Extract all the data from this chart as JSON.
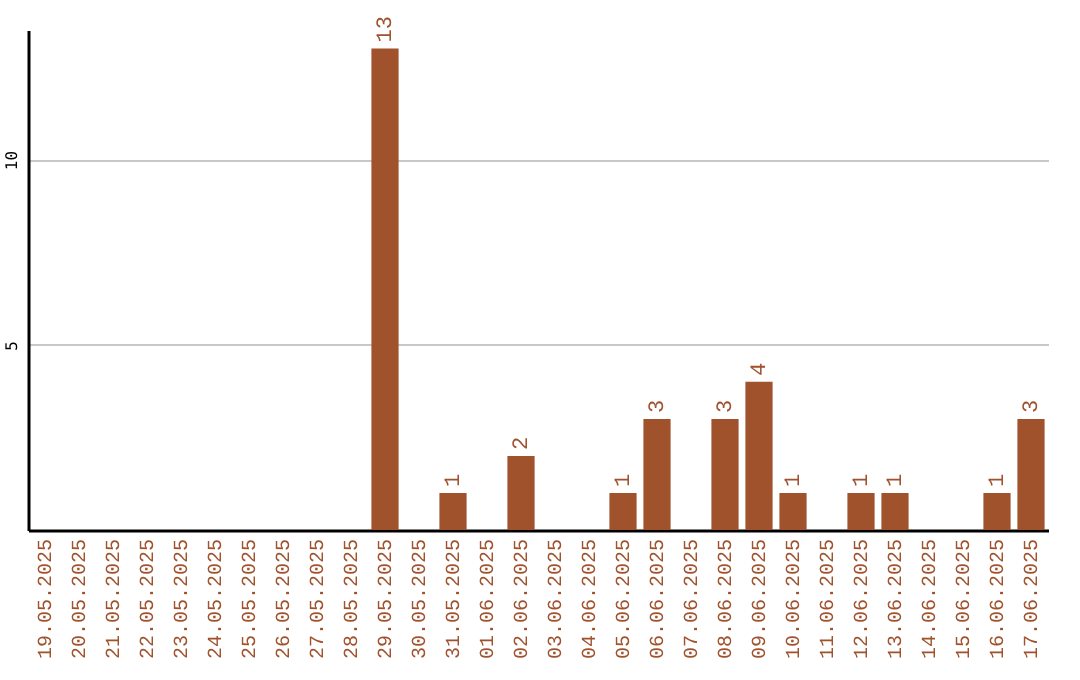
{
  "chart_data": {
    "type": "bar",
    "categories": [
      "19.05.2025",
      "20.05.2025",
      "21.05.2025",
      "22.05.2025",
      "23.05.2025",
      "24.05.2025",
      "25.05.2025",
      "26.05.2025",
      "27.05.2025",
      "28.05.2025",
      "29.05.2025",
      "30.05.2025",
      "31.05.2025",
      "01.06.2025",
      "02.06.2025",
      "03.06.2025",
      "04.06.2025",
      "05.06.2025",
      "06.06.2025",
      "07.06.2025",
      "08.06.2025",
      "09.06.2025",
      "10.06.2025",
      "11.06.2025",
      "12.06.2025",
      "13.06.2025",
      "14.06.2025",
      "15.06.2025",
      "16.06.2025",
      "17.06.2025"
    ],
    "values": [
      0,
      0,
      0,
      0,
      0,
      0,
      0,
      0,
      0,
      0,
      13,
      0,
      1,
      0,
      2,
      0,
      0,
      1,
      3,
      0,
      3,
      4,
      1,
      0,
      1,
      1,
      0,
      0,
      1,
      3
    ],
    "value_labels": [
      null,
      null,
      null,
      null,
      null,
      null,
      null,
      null,
      null,
      null,
      "13",
      null,
      "1",
      null,
      "2",
      null,
      null,
      "1",
      "3",
      null,
      "3",
      "4",
      "1",
      null,
      "1",
      "1",
      null,
      null,
      "1",
      "3"
    ],
    "color": "#a0522d",
    "ylim": [
      0,
      13.5
    ],
    "yticks": [
      5,
      10
    ],
    "grid": "y"
  }
}
